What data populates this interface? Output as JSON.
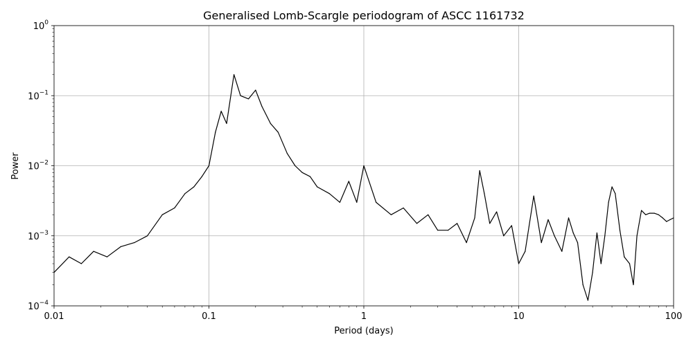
{
  "chart_data": {
    "type": "line",
    "title": "Generalised Lomb-Scargle periodogram of ASCC 1161732",
    "xlabel": "Period (days)",
    "ylabel": "Power",
    "xscale": "log",
    "yscale": "log",
    "xlim": [
      0.01,
      100
    ],
    "ylim": [
      0.0001,
      1
    ],
    "grid": true,
    "x_ticks": [
      {
        "value": 0.01,
        "label": "0.01"
      },
      {
        "value": 0.1,
        "label": "0.1"
      },
      {
        "value": 1,
        "label": "1"
      },
      {
        "value": 10,
        "label": "10"
      },
      {
        "value": 100,
        "label": "100"
      }
    ],
    "y_ticks": [
      {
        "value": 0.0001,
        "base": "10",
        "exp": "−4"
      },
      {
        "value": 0.001,
        "base": "10",
        "exp": "−3"
      },
      {
        "value": 0.01,
        "base": "10",
        "exp": "−2"
      },
      {
        "value": 0.1,
        "base": "10",
        "exp": "−1"
      },
      {
        "value": 1,
        "base": "10",
        "exp": "0"
      }
    ],
    "series": [
      {
        "color": "#000000",
        "x": [
          0.01,
          0.0125,
          0.015,
          0.018,
          0.022,
          0.027,
          0.033,
          0.04,
          0.05,
          0.06,
          0.07,
          0.08,
          0.09,
          0.1,
          0.11,
          0.12,
          0.13,
          0.145,
          0.16,
          0.18,
          0.2,
          0.22,
          0.25,
          0.28,
          0.32,
          0.36,
          0.4,
          0.45,
          0.5,
          0.6,
          0.7,
          0.8,
          0.9,
          1.0,
          1.2,
          1.5,
          1.8,
          2.2,
          2.6,
          3.0,
          3.5,
          4.0,
          4.6,
          5.2,
          5.6,
          6.0,
          6.5,
          7.2,
          8.0,
          9.0,
          10.0,
          11.0,
          12.5,
          14.0,
          15.5,
          17.0,
          19.0,
          21.0,
          22.5,
          24.0,
          26.0,
          28.0,
          30.0,
          32.0,
          34.0,
          36.0,
          38.0,
          40.0,
          42.0,
          45.0,
          48.0,
          52.0,
          55.0,
          58.0,
          62.0,
          66.0,
          70.0,
          75.0,
          80.0,
          85.0,
          90.0,
          95.0,
          100.0
        ],
        "y": [
          0.0003,
          0.0005,
          0.0004,
          0.0006,
          0.0005,
          0.0007,
          0.0008,
          0.001,
          0.002,
          0.0025,
          0.004,
          0.005,
          0.007,
          0.01,
          0.03,
          0.06,
          0.04,
          0.2,
          0.1,
          0.09,
          0.12,
          0.07,
          0.04,
          0.03,
          0.015,
          0.01,
          0.008,
          0.007,
          0.005,
          0.004,
          0.003,
          0.006,
          0.003,
          0.01,
          0.003,
          0.002,
          0.0025,
          0.0015,
          0.002,
          0.0012,
          0.0012,
          0.0015,
          0.0008,
          0.0018,
          0.0085,
          0.004,
          0.0015,
          0.0022,
          0.001,
          0.0014,
          0.0004,
          0.0006,
          0.0037,
          0.0008,
          0.0017,
          0.001,
          0.0006,
          0.0018,
          0.0011,
          0.0008,
          0.0002,
          0.00012,
          0.0003,
          0.0011,
          0.0004,
          0.001,
          0.003,
          0.005,
          0.004,
          0.0012,
          0.0005,
          0.0004,
          0.0002,
          0.001,
          0.0023,
          0.002,
          0.0021,
          0.0021,
          0.002,
          0.0018,
          0.0016,
          0.0017,
          0.0018
        ]
      }
    ]
  }
}
